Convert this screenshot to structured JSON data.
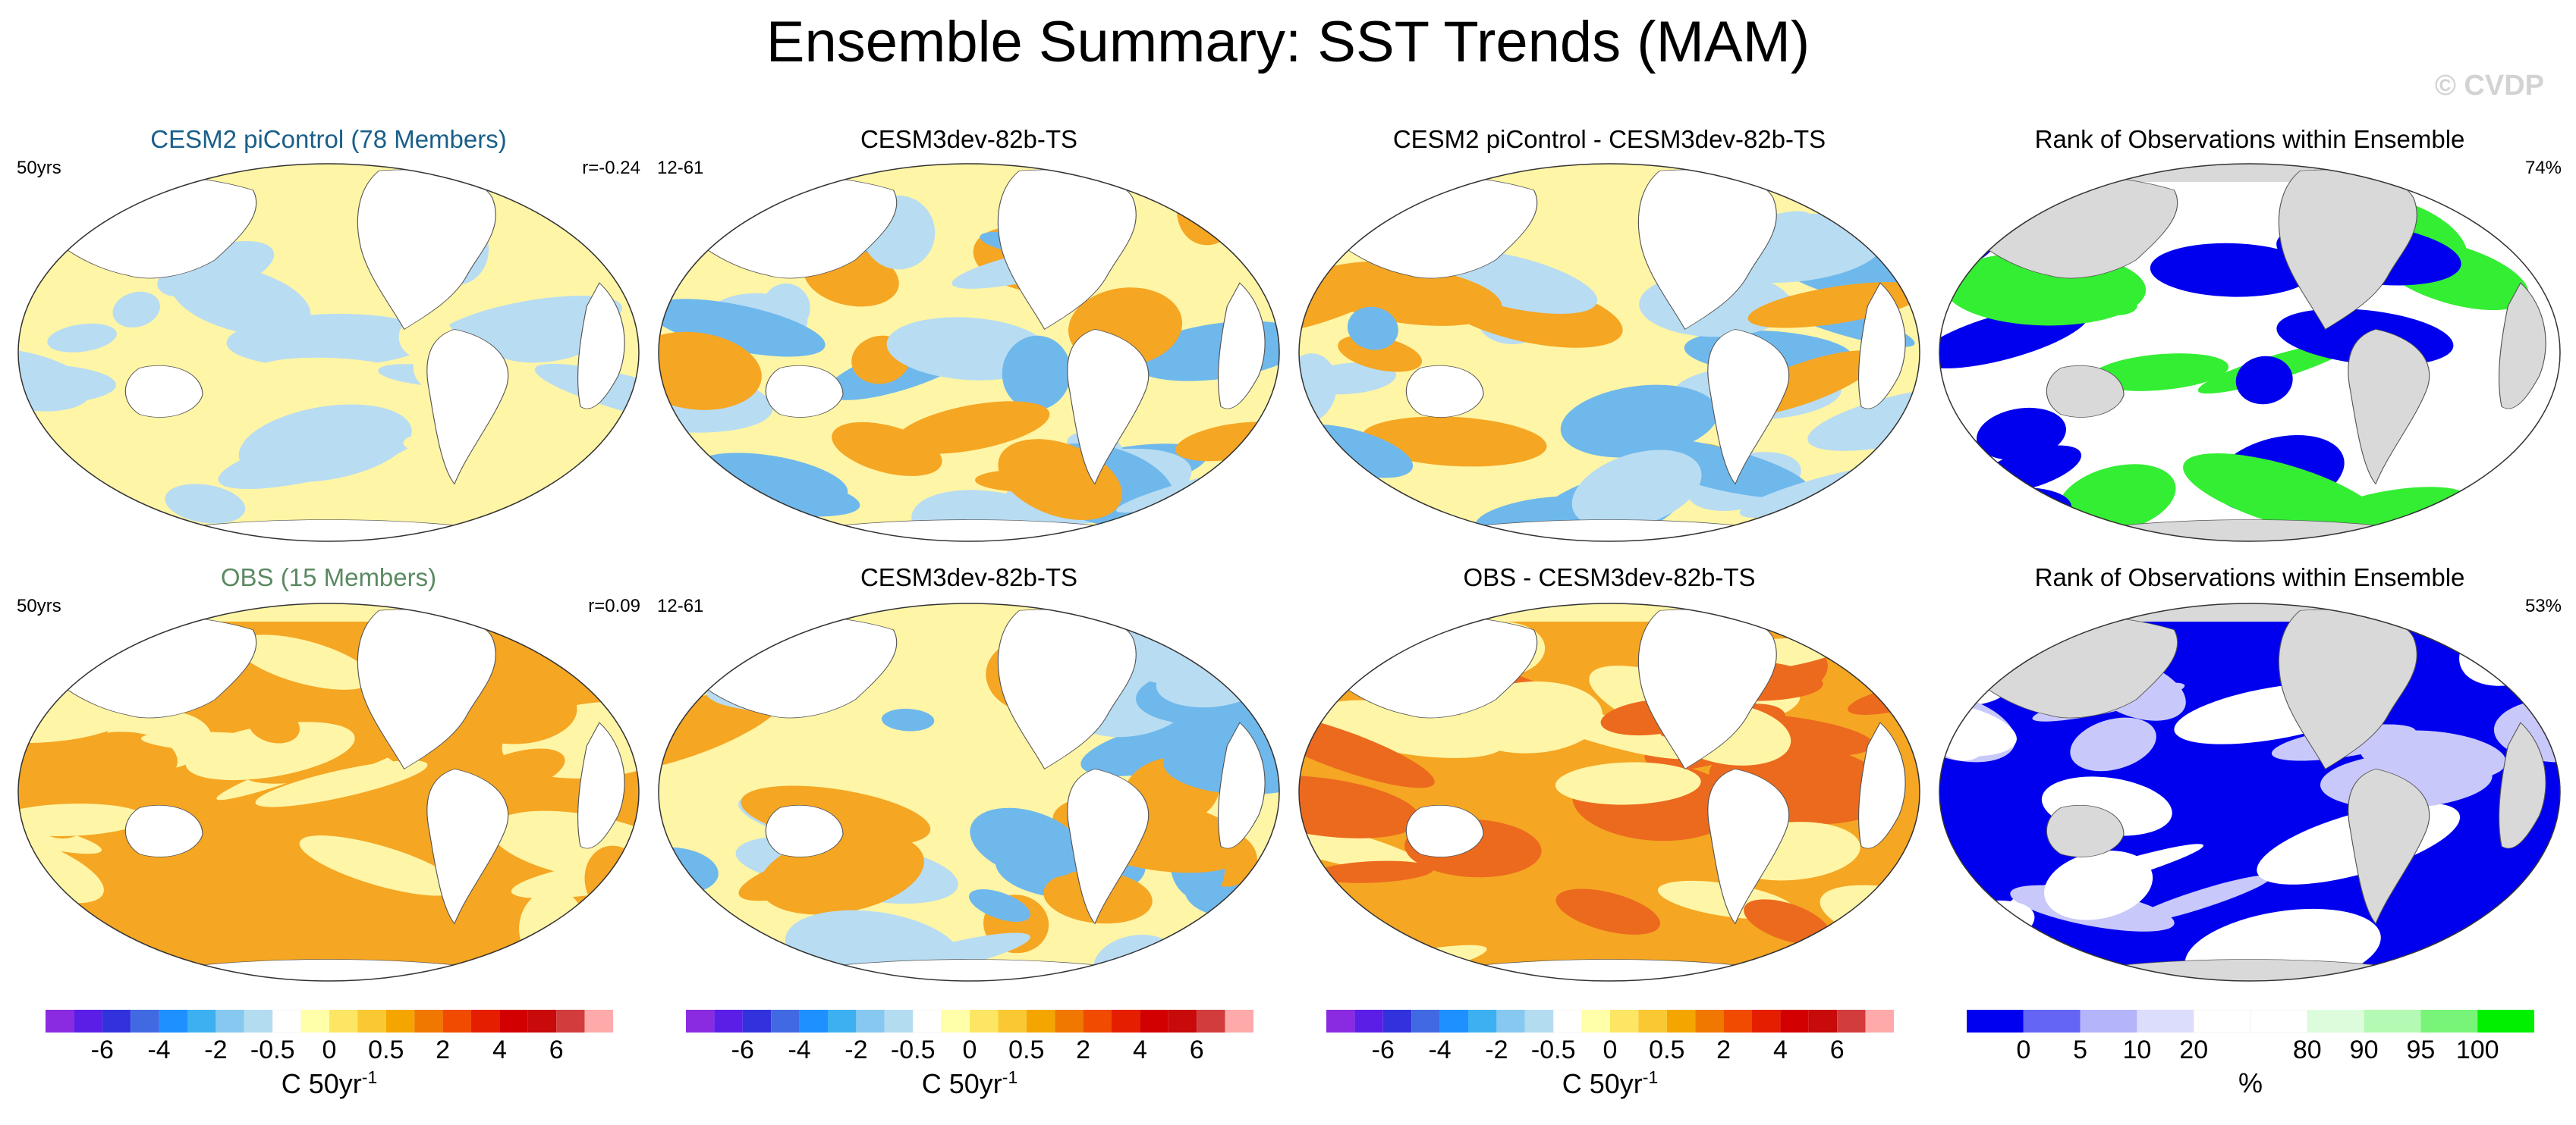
{
  "title": "Ensemble Summary: SST Trends (MAM)",
  "watermark": "© CVDP",
  "chart_data": [
    {
      "type": "heatmap",
      "title": "CESM2 piControl (78 Members)",
      "left_label": "50yrs",
      "right_label": "r=-0.24",
      "colorbar": "trend",
      "dominant_levels": [
        0.25,
        -0.25,
        0.25
      ]
    },
    {
      "type": "heatmap",
      "title": "CESM3dev-82b-TS",
      "left_label": "12-61",
      "right_label": "",
      "colorbar": "trend",
      "dominant_levels": [
        0.25,
        -0.25,
        1,
        -1
      ]
    },
    {
      "type": "heatmap",
      "title": "CESM2 piControl - CESM3dev-82b-TS",
      "left_label": "",
      "right_label": "",
      "colorbar": "trend",
      "dominant_levels": [
        0.25,
        -0.25,
        1,
        -1
      ]
    },
    {
      "type": "heatmap",
      "title": "Rank of Observations within Ensemble",
      "left_label": "",
      "right_label": "74%",
      "colorbar": "rank",
      "dominant_levels": [
        "white",
        "blue",
        "green"
      ]
    },
    {
      "type": "heatmap",
      "title": "OBS (15 Members)",
      "left_label": "50yrs",
      "right_label": "r=0.09",
      "colorbar": "trend",
      "dominant_levels": [
        1,
        0.25,
        1
      ]
    },
    {
      "type": "heatmap",
      "title": "CESM3dev-82b-TS",
      "left_label": "12-61",
      "right_label": "",
      "colorbar": "trend",
      "dominant_levels": [
        0.25,
        -0.25,
        1,
        -1
      ]
    },
    {
      "type": "heatmap",
      "title": "OBS - CESM3dev-82b-TS",
      "left_label": "",
      "right_label": "",
      "colorbar": "trend",
      "dominant_levels": [
        1,
        0.25,
        3
      ]
    },
    {
      "type": "heatmap",
      "title": "Rank of Observations within Ensemble",
      "left_label": "",
      "right_label": "53%",
      "colorbar": "rank",
      "dominant_levels": [
        "blue",
        "white",
        "lightblue"
      ]
    }
  ],
  "colorbars": {
    "trend": {
      "units_main": "C 50yr",
      "units_sup": "-1",
      "colors": [
        "#8a2be2",
        "#5a1ee6",
        "#3232dc",
        "#4169e1",
        "#1e90ff",
        "#3cb0f0",
        "#87c8f0",
        "#b4dcf0",
        "#ffffff",
        "#ffffaa",
        "#fce664",
        "#fac832",
        "#f5a500",
        "#f07800",
        "#f04b00",
        "#e61e00",
        "#d20000",
        "#c80a0a",
        "#d23c3c",
        "#ffaaaa"
      ],
      "ticks": [
        "-6",
        "-4",
        "-2",
        "-0.5",
        "0",
        "0.5",
        "2",
        "4",
        "6"
      ]
    },
    "rank": {
      "units_main": "%",
      "units_sup": "",
      "colors": [
        "#0000f0",
        "#6464f5",
        "#b4b4fa",
        "#dcdcfc",
        "#ffffff",
        "#ffffff",
        "#dcfcdc",
        "#b4fab4",
        "#78f578",
        "#00f000"
      ],
      "ticks": [
        "0",
        "5",
        "10",
        "20",
        "80",
        "90",
        "95",
        "100"
      ]
    }
  },
  "panel_colors": {
    "pos1": "#fff5a6",
    "pos2": "#fcd856",
    "pos3": "#f5a623",
    "pos4": "#ec6a1e",
    "neg1": "#b8dcf2",
    "neg2": "#6fb8ec",
    "neg3": "#2d8ae6",
    "land": "#ffffff",
    "rank_land": "#d9d9d9"
  }
}
